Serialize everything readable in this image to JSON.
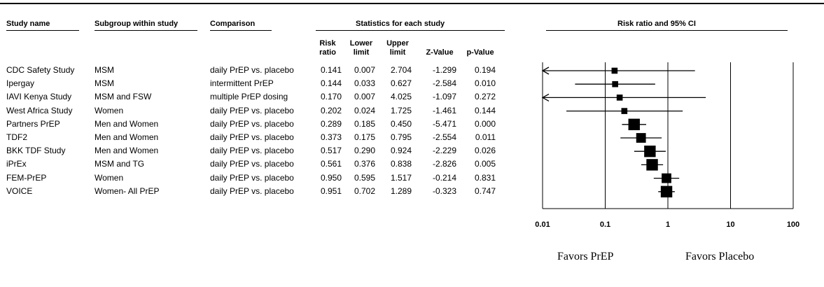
{
  "headers": {
    "study_name": "Study name",
    "subgroup": "Subgroup within study",
    "comparison": "Comparison",
    "stats_group": "Statistics for each study",
    "plot_title": "Risk ratio and 95% CI",
    "risk_ratio": [
      "Risk",
      "ratio"
    ],
    "lower_limit": [
      "Lower",
      "limit"
    ],
    "upper_limit": [
      "Upper",
      "limit"
    ],
    "z_value": "Z-Value",
    "p_value": "p-Value"
  },
  "rows": [
    {
      "study": "CDC Safety Study",
      "subgroup": "MSM",
      "comparison": "daily PrEP vs. placebo",
      "rr": "0.141",
      "lower": "0.007",
      "upper": "2.704",
      "z": "-1.299",
      "p": "0.194"
    },
    {
      "study": "Ipergay",
      "subgroup": "MSM",
      "comparison": "intermittent PrEP",
      "rr": "0.144",
      "lower": "0.033",
      "upper": "0.627",
      "z": "-2.584",
      "p": "0.010"
    },
    {
      "study": "IAVI Kenya Study",
      "subgroup": "MSM and FSW",
      "comparison": "multiple PrEP dosing",
      "rr": "0.170",
      "lower": "0.007",
      "upper": "4.025",
      "z": "-1.097",
      "p": "0.272"
    },
    {
      "study": "West Africa Study",
      "subgroup": "Women",
      "comparison": "daily PrEP vs. placebo",
      "rr": "0.202",
      "lower": "0.024",
      "upper": "1.725",
      "z": "-1.461",
      "p": "0.144"
    },
    {
      "study": "Partners PrEP",
      "subgroup": "Men and Women",
      "comparison": "daily PrEP vs. placebo",
      "rr": "0.289",
      "lower": "0.185",
      "upper": "0.450",
      "z": "-5.471",
      "p": "0.000"
    },
    {
      "study": "TDF2",
      "subgroup": "Men and Women",
      "comparison": "daily PrEP vs. placebo",
      "rr": "0.373",
      "lower": "0.175",
      "upper": "0.795",
      "z": "-2.554",
      "p": "0.011"
    },
    {
      "study": "BKK TDF Study",
      "subgroup": "Men and Women",
      "comparison": "daily PrEP vs. placebo",
      "rr": "0.517",
      "lower": "0.290",
      "upper": "0.924",
      "z": "-2.229",
      "p": "0.026"
    },
    {
      "study": "iPrEx",
      "subgroup": "MSM and TG",
      "comparison": "daily PrEP vs. placebo",
      "rr": "0.561",
      "lower": "0.376",
      "upper": "0.838",
      "z": "-2.826",
      "p": "0.005"
    },
    {
      "study": "FEM-PrEP",
      "subgroup": "Women",
      "comparison": "daily PrEP vs. placebo",
      "rr": "0.950",
      "lower": "0.595",
      "upper": "1.517",
      "z": "-0.214",
      "p": "0.831"
    },
    {
      "study": "VOICE",
      "subgroup": "Women- All PrEP",
      "comparison": "daily PrEP vs. placebo",
      "rr": "0.951",
      "lower": "0.702",
      "upper": "1.289",
      "z": "-0.323",
      "p": "0.747"
    }
  ],
  "favors": {
    "left": "Favors PrEP",
    "right": "Favors Placebo"
  },
  "chart_data": {
    "type": "scatter",
    "subtype": "forest-plot",
    "title": "Risk ratio and 95% CI",
    "x_scale": "log",
    "xlim": [
      0.01,
      100
    ],
    "x_ticks": [
      "0.01",
      "0.1",
      "1",
      "10",
      "100"
    ],
    "x_tick_values": [
      0.01,
      0.1,
      1,
      10,
      100
    ],
    "categories": [
      "CDC Safety Study",
      "Ipergay",
      "IAVI Kenya Study",
      "West Africa Study",
      "Partners PrEP",
      "TDF2",
      "BKK TDF Study",
      "iPrEx",
      "FEM-PrEP",
      "VOICE"
    ],
    "values": [
      0.141,
      0.144,
      0.17,
      0.202,
      0.289,
      0.373,
      0.517,
      0.561,
      0.95,
      0.951
    ],
    "lower": [
      0.007,
      0.033,
      0.007,
      0.024,
      0.185,
      0.175,
      0.29,
      0.376,
      0.595,
      0.702
    ],
    "upper": [
      2.704,
      0.627,
      4.025,
      1.725,
      0.45,
      0.795,
      0.924,
      0.838,
      1.517,
      1.289
    ],
    "weight": [
      1,
      1,
      1,
      1,
      4,
      3,
      4,
      4,
      3,
      4
    ],
    "xlabel_left": "Favors PrEP",
    "xlabel_right": "Favors Placebo",
    "grid": false
  }
}
